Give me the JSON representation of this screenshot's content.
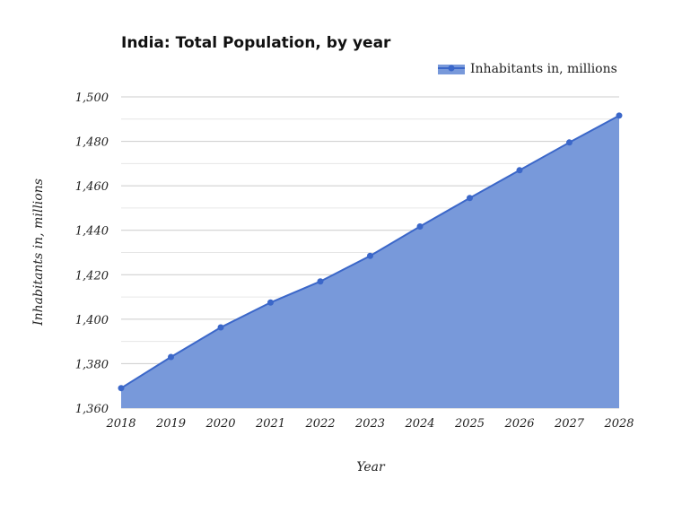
{
  "chart_data": {
    "type": "area",
    "title": "India: Total Population, by year",
    "xlabel": "Year",
    "ylabel": "Inhabitants in, millions",
    "x": [
      2018,
      2019,
      2020,
      2021,
      2022,
      2023,
      2024,
      2025,
      2026,
      2027,
      2028
    ],
    "series": [
      {
        "name": "Inhabitants in, millions",
        "values": [
          1369,
          1383,
          1396.3,
          1407.5,
          1417,
          1428.5,
          1441.7,
          1454.5,
          1467,
          1479.5,
          1491.6
        ]
      }
    ],
    "ylim": [
      1360,
      1500
    ],
    "yticks": [
      "1,360",
      "1,380",
      "1,400",
      "1,420",
      "1,440",
      "1,460",
      "1,480",
      "1,500"
    ],
    "ytick_values": [
      1360,
      1380,
      1400,
      1420,
      1440,
      1460,
      1480,
      1500
    ],
    "xticks": [
      "2018",
      "2019",
      "2020",
      "2021",
      "2022",
      "2023",
      "2024",
      "2025",
      "2026",
      "2027",
      "2028"
    ],
    "grid": true,
    "legend_position": "top-right",
    "colors": {
      "line": "#3b67c9",
      "fill": "#7899da",
      "grid": "#cccccc",
      "minor_grid": "#e6e6e6"
    }
  }
}
